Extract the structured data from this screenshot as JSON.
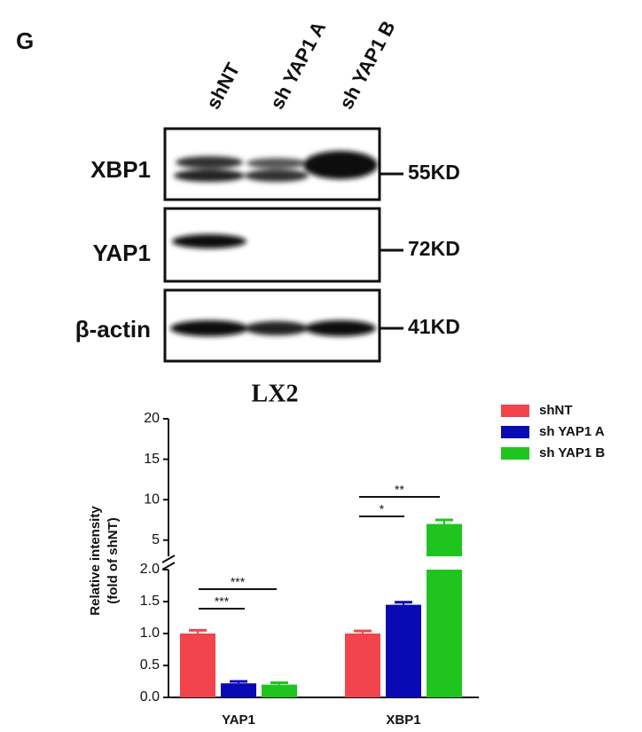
{
  "panel_label": "G",
  "blot": {
    "lanes": [
      "shNT",
      "sh YAP1 A",
      "sh YAP1 B"
    ],
    "rows": [
      {
        "name": "XBP1",
        "size": "55KD"
      },
      {
        "name": "YAP1",
        "size": "72KD"
      },
      {
        "name": "β-actin",
        "size": "41KD"
      }
    ],
    "cell_line": "LX2"
  },
  "chart_data": {
    "type": "bar",
    "ylabel": [
      "Relative intensity",
      "(fold of shNT)"
    ],
    "categories": [
      "YAP1",
      "XBP1"
    ],
    "series": [
      {
        "name": "shNT",
        "color": "#f2444c",
        "values": [
          1.0,
          1.0
        ],
        "errors": [
          0.05,
          0.04
        ]
      },
      {
        "name": "sh YAP1 A",
        "color": "#0a0ab4",
        "values": [
          0.22,
          1.45
        ],
        "errors": [
          0.03,
          0.04
        ]
      },
      {
        "name": "sh YAP1 B",
        "color": "#20c41e",
        "values": [
          0.2,
          7
        ],
        "errors": [
          0.03,
          0.5
        ]
      }
    ],
    "segments": [
      {
        "ylim": [
          0,
          2
        ],
        "yticks": [
          {
            "value": 0,
            "label": "0.0"
          },
          {
            "value": 0.5,
            "label": "0.5"
          },
          {
            "value": 1,
            "label": "1.0"
          },
          {
            "value": 1.5,
            "label": "1.5"
          },
          {
            "value": 2,
            "label": "2.0"
          }
        ]
      },
      {
        "ylim": [
          3,
          20
        ],
        "yticks": [
          5,
          10,
          15,
          20
        ]
      }
    ],
    "annotations": [
      "***",
      "***",
      "*",
      "**"
    ],
    "legend": "top-right"
  }
}
